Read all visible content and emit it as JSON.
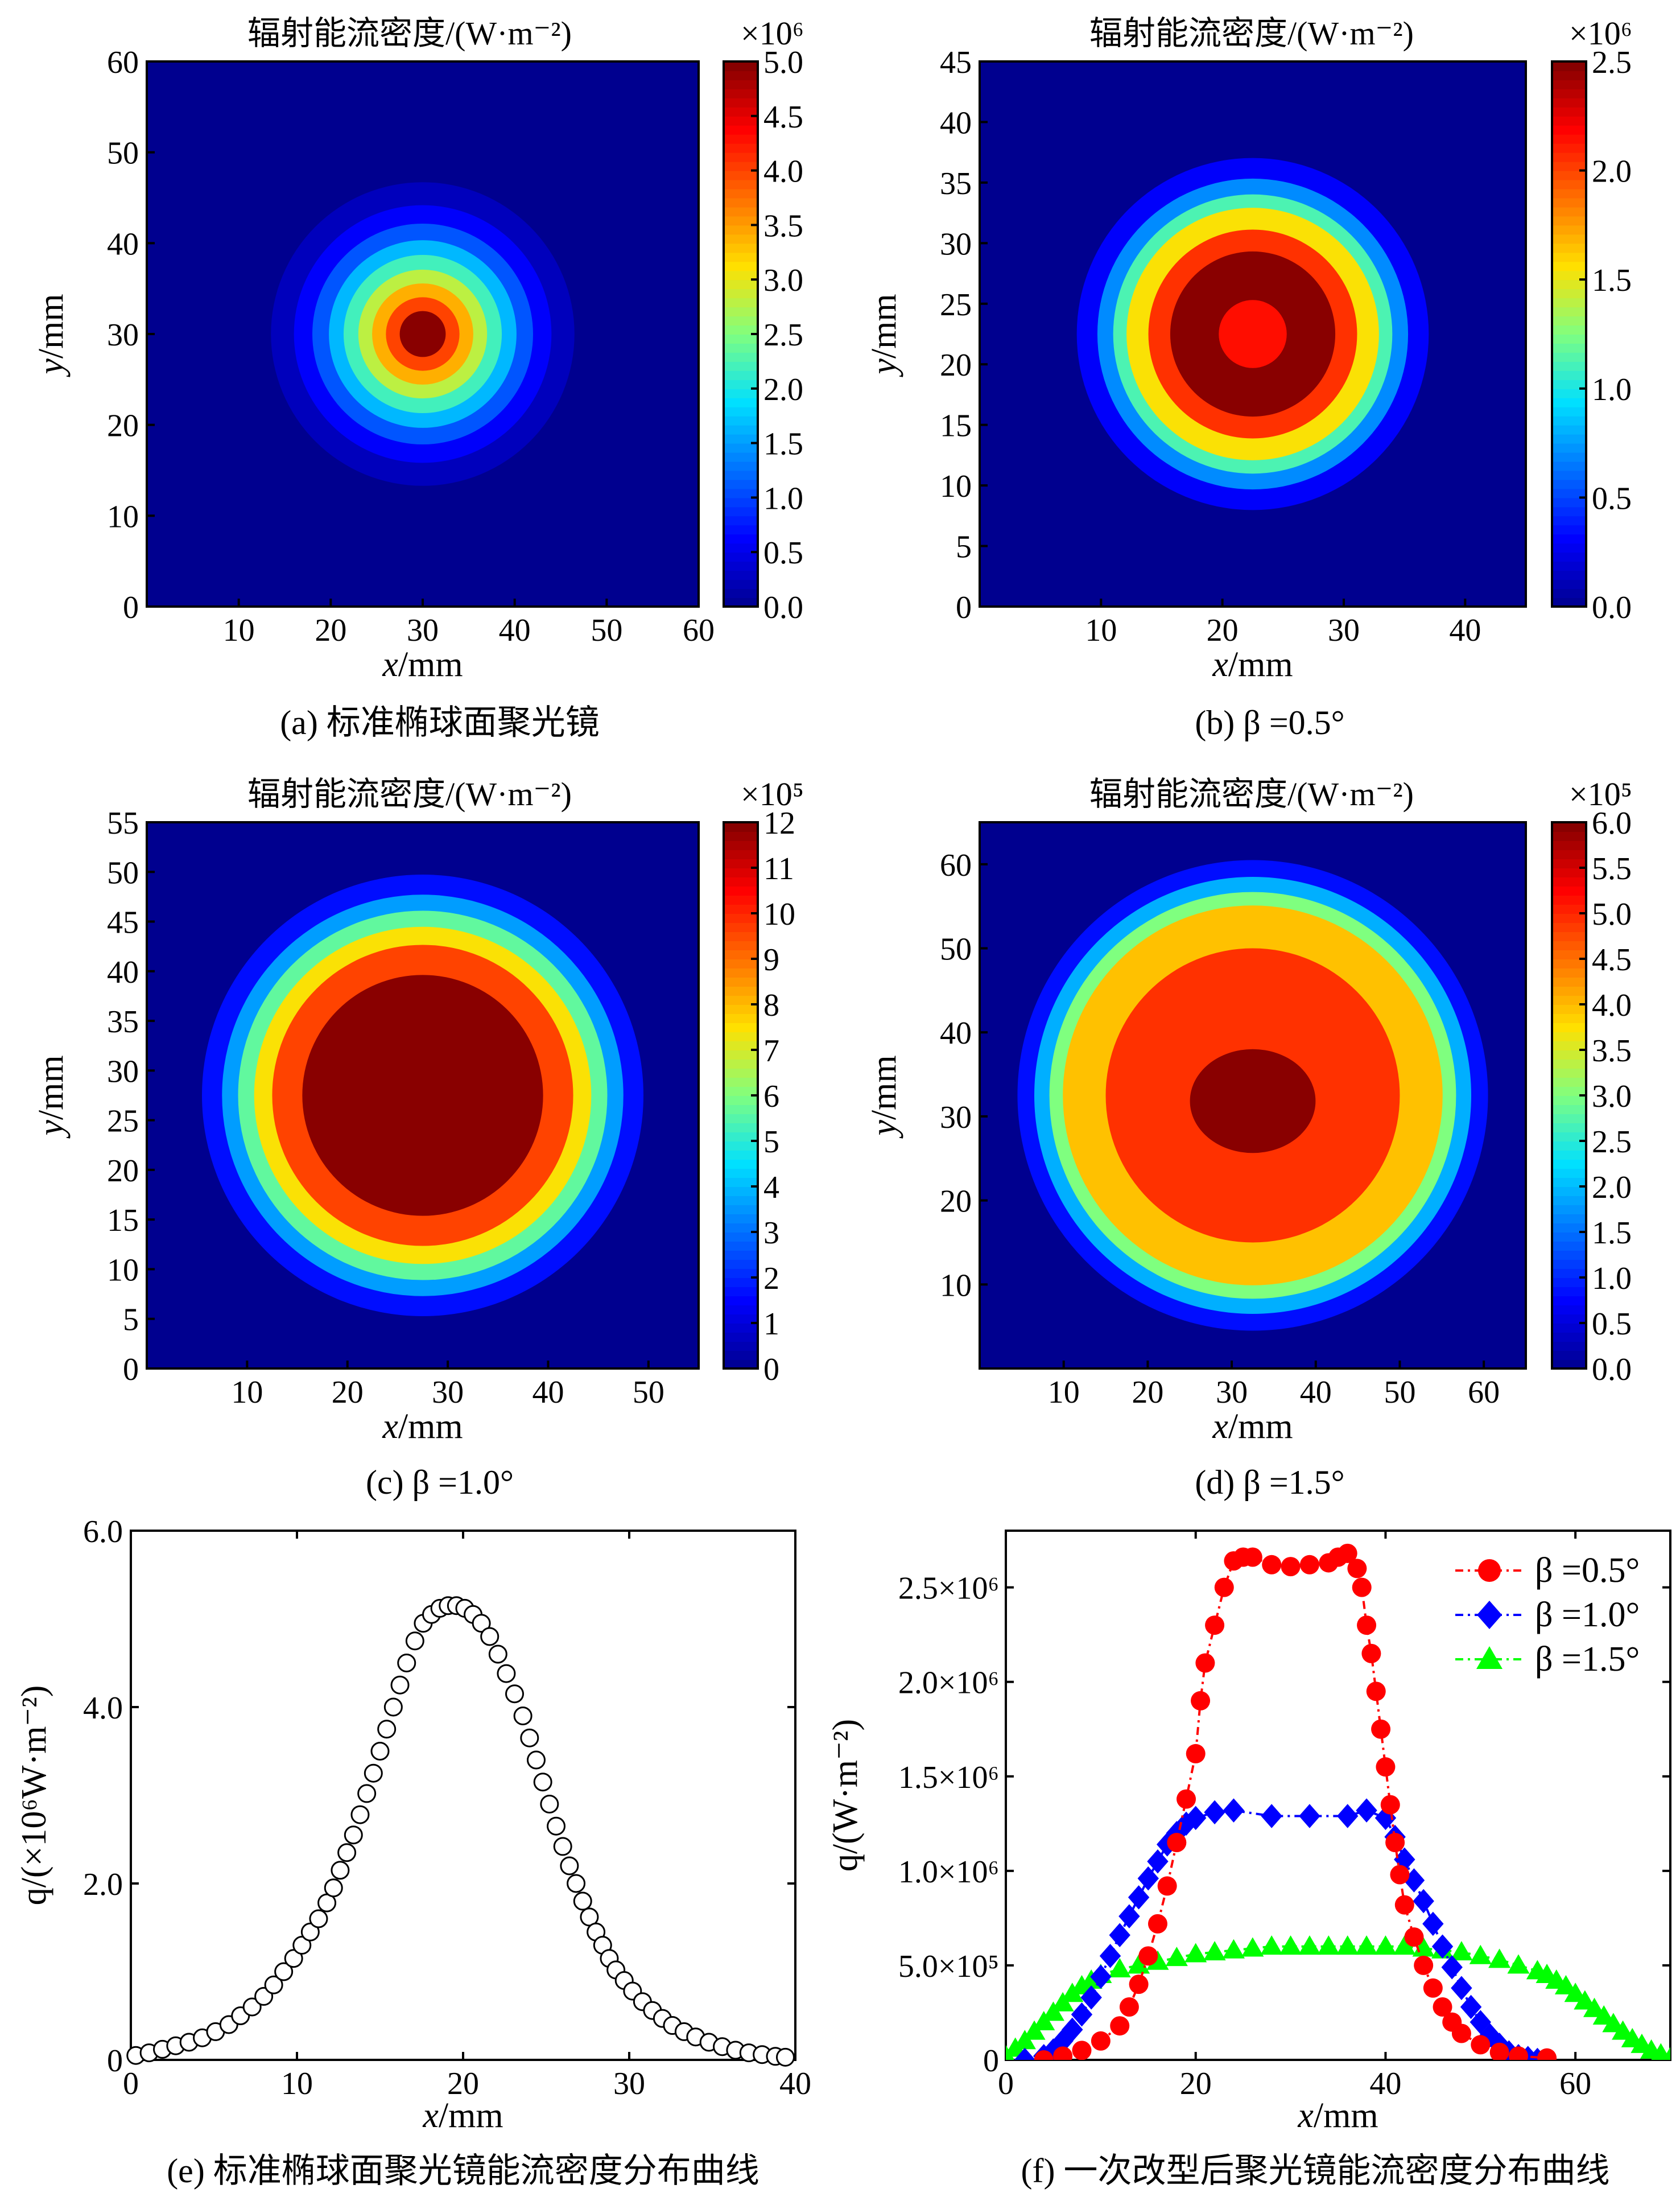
{
  "colormap_stops": [
    "#00008f",
    "#0000ff",
    "#0070ff",
    "#00e0ff",
    "#7fff7f",
    "#ffe000",
    "#ff7000",
    "#ff0000",
    "#7f0000"
  ],
  "chart_data": [
    {
      "id": "a",
      "type": "heatmap",
      "title": "辐射能流密度/(W·m⁻²)",
      "caption": "(a) 标准椭球面聚光镜",
      "xlabel": "x/mm",
      "ylabel": "y/mm",
      "xlim": [
        0,
        60
      ],
      "ylim": [
        0,
        60
      ],
      "xticks": [
        "10",
        "20",
        "30",
        "40",
        "50",
        "60"
      ],
      "yticks": [
        "0",
        "10",
        "20",
        "30",
        "40",
        "50",
        "60"
      ],
      "cbar_exp": "×10⁶",
      "cbar_ticks": [
        "0.0",
        "0.5",
        "1.0",
        "1.5",
        "2.0",
        "2.5",
        "3.0",
        "3.5",
        "4.0",
        "4.5",
        "5.0"
      ],
      "cbar_range": [
        0,
        5.0
      ],
      "center": [
        30,
        30
      ],
      "contours": [
        {
          "r": 16.5,
          "level": 0.05
        },
        {
          "r": 14.0,
          "level": 0.12
        },
        {
          "r": 12.0,
          "level": 0.22
        },
        {
          "r": 10.2,
          "level": 0.33
        },
        {
          "r": 8.6,
          "level": 0.44
        },
        {
          "r": 7.0,
          "level": 0.56
        },
        {
          "r": 5.5,
          "level": 0.68
        },
        {
          "r": 4.0,
          "level": 0.8
        },
        {
          "r": 2.5,
          "level": 0.99
        }
      ]
    },
    {
      "id": "b",
      "type": "heatmap",
      "title": "辐射能流密度/(W·m⁻²)",
      "caption": "(b) β =0.5°",
      "xlabel": "x/mm",
      "ylabel": "y/mm",
      "xlim": [
        0,
        45
      ],
      "ylim": [
        0,
        45
      ],
      "xticks": [
        "10",
        "20",
        "30",
        "40"
      ],
      "yticks": [
        "0",
        "5",
        "10",
        "15",
        "20",
        "25",
        "30",
        "35",
        "40",
        "45"
      ],
      "cbar_exp": "×10⁶",
      "cbar_ticks": [
        "0.0",
        "0.5",
        "1.0",
        "1.5",
        "2.0",
        "2.5"
      ],
      "cbar_range": [
        0,
        2.5
      ],
      "center": [
        22.5,
        22.5
      ],
      "contours": [
        {
          "r": 14.5,
          "level": 0.12
        },
        {
          "r": 12.8,
          "level": 0.28
        },
        {
          "r": 11.5,
          "level": 0.45
        },
        {
          "r": 10.4,
          "level": 0.62
        },
        {
          "r": 8.6,
          "level": 0.82
        },
        {
          "r": 6.8,
          "level": 0.99
        },
        {
          "r": 2.8,
          "level": 0.86
        }
      ]
    },
    {
      "id": "c",
      "type": "heatmap",
      "title": "辐射能流密度/(W·m⁻²)",
      "caption": "(c) β =1.0°",
      "xlabel": "x/mm",
      "ylabel": "y/mm",
      "xlim": [
        0,
        55
      ],
      "ylim": [
        0,
        55
      ],
      "xticks": [
        "10",
        "20",
        "30",
        "40",
        "50"
      ],
      "yticks": [
        "0",
        "5",
        "10",
        "15",
        "20",
        "25",
        "30",
        "35",
        "40",
        "45",
        "50",
        "55"
      ],
      "cbar_exp": "×10⁵",
      "cbar_ticks": [
        "0",
        "1",
        "2",
        "3",
        "4",
        "5",
        "6",
        "7",
        "8",
        "9",
        "10",
        "11",
        "12"
      ],
      "cbar_range": [
        0,
        12
      ],
      "center": [
        27.5,
        27.5
      ],
      "contours": [
        {
          "r": 22.0,
          "level": 0.14
        },
        {
          "r": 20.0,
          "level": 0.3
        },
        {
          "r": 18.4,
          "level": 0.47
        },
        {
          "r": 16.8,
          "level": 0.62
        },
        {
          "r": 15.0,
          "level": 0.8
        },
        {
          "r": 12.0,
          "level": 0.99
        }
      ]
    },
    {
      "id": "d",
      "type": "heatmap",
      "title": "辐射能流密度/(W·m⁻²)",
      "caption": "(d) β =1.5°",
      "xlabel": "x/mm",
      "ylabel": "y/mm",
      "xlim": [
        0,
        65
      ],
      "ylim": [
        0,
        65
      ],
      "xticks": [
        "10",
        "20",
        "30",
        "40",
        "50",
        "60"
      ],
      "yticks": [
        "10",
        "20",
        "30",
        "40",
        "50",
        "60"
      ],
      "cbar_exp": "×10⁵",
      "cbar_ticks": [
        "0.0",
        "0.5",
        "1.0",
        "1.5",
        "2.0",
        "2.5",
        "3.0",
        "3.5",
        "4.0",
        "4.5",
        "5.0",
        "5.5",
        "6.0"
      ],
      "cbar_range": [
        0,
        6.0
      ],
      "center": [
        32.5,
        32.5
      ],
      "contours": [
        {
          "r": 28.0,
          "level": 0.14
        },
        {
          "r": 26.0,
          "level": 0.32
        },
        {
          "r": 24.2,
          "level": 0.5
        },
        {
          "r": 22.6,
          "level": 0.66
        },
        {
          "r": 17.5,
          "level": 0.82
        },
        {
          "r": 6.5,
          "level": 0.99
        }
      ]
    },
    {
      "id": "e",
      "type": "scatter",
      "caption": "(e) 标准椭球面聚光镜能流密度分布曲线",
      "xlabel": "x/mm",
      "ylabel": "q/(×10⁶W·m⁻²)",
      "xlim": [
        0,
        40
      ],
      "ylim": [
        0,
        6.0
      ],
      "xticks": [
        "0",
        "10",
        "20",
        "30",
        "40"
      ],
      "yticks": [
        "0",
        "2.0",
        "4.0",
        "6.0"
      ],
      "x": [
        0.3,
        1.1,
        1.9,
        2.7,
        3.5,
        4.3,
        5.1,
        5.9,
        6.6,
        7.3,
        8.0,
        8.6,
        9.2,
        9.8,
        10.3,
        10.8,
        11.3,
        11.8,
        12.2,
        12.6,
        13.0,
        13.4,
        13.8,
        14.2,
        14.6,
        15.0,
        15.4,
        15.8,
        16.2,
        16.6,
        17.1,
        17.6,
        18.1,
        18.6,
        19.1,
        19.6,
        20.1,
        20.6,
        21.1,
        21.6,
        22.1,
        22.6,
        23.1,
        23.6,
        24.0,
        24.4,
        24.8,
        25.2,
        25.6,
        26.0,
        26.4,
        26.8,
        27.2,
        27.6,
        28.0,
        28.4,
        28.8,
        29.2,
        29.7,
        30.2,
        30.8,
        31.4,
        32.0,
        32.6,
        33.3,
        34.0,
        34.8,
        35.6,
        36.4,
        37.2,
        38.0,
        38.8,
        39.4
      ],
      "y": [
        0.05,
        0.08,
        0.12,
        0.16,
        0.2,
        0.25,
        0.32,
        0.4,
        0.5,
        0.6,
        0.72,
        0.85,
        1.0,
        1.15,
        1.3,
        1.45,
        1.6,
        1.78,
        1.95,
        2.15,
        2.35,
        2.55,
        2.78,
        3.02,
        3.25,
        3.5,
        3.75,
        4.0,
        4.25,
        4.5,
        4.75,
        4.95,
        5.05,
        5.12,
        5.15,
        5.15,
        5.12,
        5.05,
        4.95,
        4.8,
        4.6,
        4.38,
        4.15,
        3.9,
        3.65,
        3.4,
        3.15,
        2.9,
        2.65,
        2.42,
        2.2,
        2.0,
        1.8,
        1.62,
        1.45,
        1.3,
        1.15,
        1.02,
        0.9,
        0.78,
        0.66,
        0.56,
        0.47,
        0.39,
        0.32,
        0.26,
        0.2,
        0.15,
        0.11,
        0.08,
        0.06,
        0.04,
        0.03
      ]
    },
    {
      "id": "f",
      "type": "line",
      "caption": "(f) 一次改型后聚光镜能流密度分布曲线",
      "xlabel": "x/mm",
      "ylabel": "q/(W·m⁻²)",
      "xlim": [
        0,
        70
      ],
      "ylim": [
        0,
        2.8
      ],
      "y_scale_note": "×10⁶",
      "xticks": [
        "0",
        "20",
        "40",
        "60"
      ],
      "yticks": [
        "0",
        "5.0×10⁵",
        "1.0×10⁶",
        "1.5×10⁶",
        "2.0×10⁶",
        "2.5×10⁶"
      ],
      "ytick_values": [
        0,
        0.5,
        1.0,
        1.5,
        2.0,
        2.5
      ],
      "legend_position": "top-right",
      "series": [
        {
          "name": "β =0.5°",
          "color": "#ff0000",
          "marker": "circle",
          "dash": "14,8,4,8",
          "x": [
            4,
            6,
            8,
            10,
            12,
            13,
            14,
            15,
            16,
            17,
            18,
            19,
            20,
            20.5,
            21,
            22,
            23,
            24,
            25,
            26,
            28,
            30,
            32,
            34,
            35,
            36,
            37,
            37.5,
            38,
            38.5,
            39,
            39.5,
            40,
            40.5,
            41,
            41.5,
            42,
            43,
            44,
            45,
            46,
            47,
            48,
            50,
            52,
            54,
            57
          ],
          "y": [
            0.0,
            0.02,
            0.05,
            0.1,
            0.18,
            0.28,
            0.4,
            0.55,
            0.72,
            0.92,
            1.15,
            1.38,
            1.62,
            1.9,
            2.1,
            2.3,
            2.5,
            2.64,
            2.66,
            2.66,
            2.62,
            2.61,
            2.62,
            2.63,
            2.66,
            2.68,
            2.6,
            2.5,
            2.3,
            2.15,
            1.95,
            1.75,
            1.55,
            1.35,
            1.15,
            0.98,
            0.82,
            0.65,
            0.5,
            0.38,
            0.28,
            0.2,
            0.14,
            0.08,
            0.04,
            0.02,
            0.01
          ]
        },
        {
          "name": "β =1.0°",
          "color": "#0000ff",
          "marker": "diamond",
          "dash": "14,8,4,8",
          "x": [
            2,
            4,
            5,
            6,
            7,
            8,
            9,
            10,
            11,
            12,
            13,
            14,
            15,
            16,
            17,
            18,
            19,
            20,
            22,
            24,
            28,
            32,
            36,
            38,
            40,
            41,
            42,
            43,
            44,
            45,
            46,
            47,
            48,
            49,
            50,
            51,
            52,
            53,
            54,
            55,
            56
          ],
          "y": [
            0.0,
            0.02,
            0.05,
            0.1,
            0.16,
            0.24,
            0.33,
            0.44,
            0.55,
            0.66,
            0.76,
            0.86,
            0.96,
            1.05,
            1.14,
            1.2,
            1.25,
            1.28,
            1.31,
            1.32,
            1.29,
            1.29,
            1.29,
            1.32,
            1.28,
            1.18,
            1.06,
            0.95,
            0.84,
            0.72,
            0.6,
            0.49,
            0.38,
            0.28,
            0.2,
            0.13,
            0.08,
            0.04,
            0.02,
            0.01,
            0.0
          ]
        },
        {
          "name": "β =1.5°",
          "color": "#00ff00",
          "marker": "triangle",
          "dash": "14,8,4,8",
          "x": [
            0,
            1,
            2,
            3,
            4,
            5,
            6,
            7,
            8,
            9,
            10,
            12,
            14,
            16,
            18,
            20,
            22,
            24,
            26,
            28,
            30,
            32,
            34,
            36,
            38,
            40,
            42,
            44,
            46,
            48,
            50,
            52,
            54,
            56,
            57,
            58,
            59,
            60,
            61,
            62,
            63,
            64,
            65,
            66,
            67,
            68,
            69,
            70
          ],
          "y": [
            0.02,
            0.06,
            0.1,
            0.15,
            0.2,
            0.25,
            0.3,
            0.35,
            0.39,
            0.42,
            0.45,
            0.48,
            0.5,
            0.52,
            0.54,
            0.56,
            0.57,
            0.58,
            0.59,
            0.6,
            0.6,
            0.6,
            0.6,
            0.6,
            0.6,
            0.6,
            0.6,
            0.59,
            0.58,
            0.57,
            0.55,
            0.53,
            0.5,
            0.47,
            0.45,
            0.42,
            0.39,
            0.35,
            0.31,
            0.27,
            0.23,
            0.19,
            0.15,
            0.11,
            0.08,
            0.05,
            0.03,
            0.01
          ]
        }
      ]
    }
  ]
}
